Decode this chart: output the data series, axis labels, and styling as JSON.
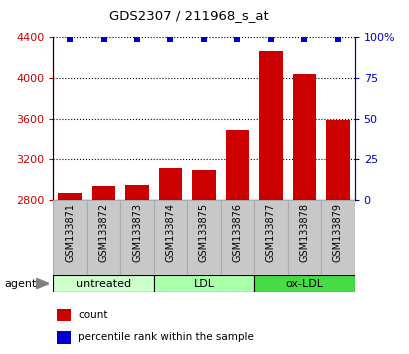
{
  "title": "GDS2307 / 211968_s_at",
  "categories": [
    "GSM133871",
    "GSM133872",
    "GSM133873",
    "GSM133874",
    "GSM133875",
    "GSM133876",
    "GSM133877",
    "GSM133878",
    "GSM133879"
  ],
  "counts": [
    2870,
    2940,
    2950,
    3110,
    3090,
    3490,
    4260,
    4040,
    3590
  ],
  "percentiles": [
    99,
    99,
    99,
    99,
    99,
    99,
    99,
    99,
    99
  ],
  "ylim_left": [
    2800,
    4400
  ],
  "ylim_right": [
    0,
    100
  ],
  "yticks_left": [
    2800,
    3200,
    3600,
    4000,
    4400
  ],
  "yticks_right": [
    0,
    25,
    50,
    75,
    100
  ],
  "bar_color": "#cc0000",
  "dot_color": "#0000cc",
  "bar_width": 0.7,
  "groups": [
    {
      "label": "untreated",
      "start": 0,
      "end": 3,
      "color": "#ccffcc"
    },
    {
      "label": "LDL",
      "start": 3,
      "end": 6,
      "color": "#aaffaa"
    },
    {
      "label": "ox-LDL",
      "start": 6,
      "end": 9,
      "color": "#44dd44"
    }
  ],
  "agent_label": "agent",
  "legend": [
    {
      "label": "count",
      "color": "#cc0000"
    },
    {
      "label": "percentile rank within the sample",
      "color": "#0000cc"
    }
  ],
  "tick_color_left": "#cc0000",
  "tick_color_right": "#0000cc",
  "background_color": "#ffffff",
  "label_bg_color": "#c8c8c8",
  "label_edge_color": "#aaaaaa"
}
